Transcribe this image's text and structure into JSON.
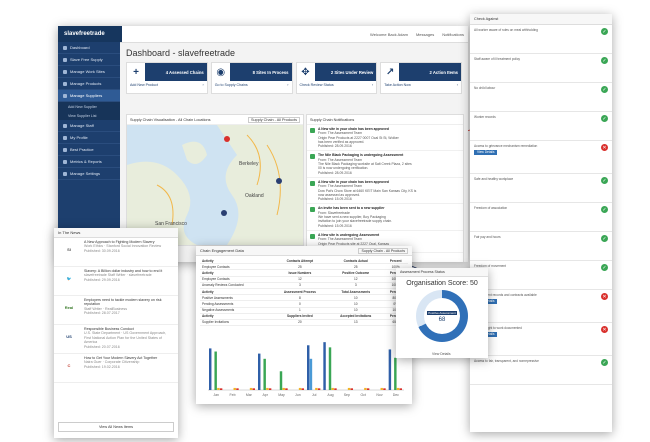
{
  "dashboard": {
    "brand": "slavefreetrade",
    "header_right": [
      "Welcome Back Adam",
      "Messages",
      "Notifications"
    ],
    "title": "Dashboard - slavefreetrade",
    "sidebar": [
      {
        "label": "Dashboard",
        "active": false
      },
      {
        "label": "Slave Free Supply",
        "active": false
      },
      {
        "label": "Manage Work Sites",
        "active": false
      },
      {
        "label": "Manage Products",
        "active": false
      },
      {
        "label": "Manage Suppliers",
        "active": true
      },
      {
        "label": "Add New Supplier",
        "sub": true
      },
      {
        "label": "View Supplier List",
        "sub": true
      },
      {
        "label": "Manage Staff",
        "active": false
      },
      {
        "label": "My Profile",
        "active": false
      },
      {
        "label": "Best Practice",
        "active": false
      },
      {
        "label": "Metrics & Reports",
        "active": false
      },
      {
        "label": "Manage Settings",
        "active": false
      }
    ],
    "cards": [
      {
        "icon": "+",
        "value": "4 Assessed Chains",
        "footer": "Add New Product"
      },
      {
        "icon": "◉",
        "value": "8 Sites In Process",
        "footer": "Go to Supply Chains"
      },
      {
        "icon": "✥",
        "value": "2 Sites Under Review",
        "footer": "Check Review Status"
      },
      {
        "icon": "↗",
        "value": "2 Action Items",
        "footer": "Take Action Now"
      }
    ],
    "map": {
      "title": "Supply Chain Visualisation - All Chain Locations",
      "select": "Supply Chain - All Products",
      "labels": [
        "San Francisco",
        "Oakland",
        "Berkeley"
      ]
    },
    "notifications": {
      "title": "Supply Chain Notifications",
      "items": [
        {
          "head": "A New site in your chain has been approved",
          "lines": [
            "From: The Assessment Team",
            "Origin Pear Products at 2227 0007 Ocal St St, Wolker",
            "has been verified as approved.",
            "Published: 28.09.2016"
          ]
        },
        {
          "head": "The Nile Black Packaging is undergoing Assessment",
          "lines": [
            "From: The Assessment Team",
            "The Nile Black Packaging worksite at Salt Creek Plaza, 2 sites",
            "00 is now undergoing verification.",
            "Published: 28.09.2016"
          ]
        },
        {
          "head": "A New site in your chain has been approved",
          "lines": [
            "From: The Assessment Team",
            "Dow Pat's Chow Store at 6460 KEIT Main San Kansas City, KS is",
            "now assessed as approved.",
            "Published: 15.09.2016"
          ]
        },
        {
          "head": "An invite has been sent to a new supplier",
          "lines": [
            "From: Slavefreetrade",
            "We have sent a new supplier, Boy Packaging",
            "invitation to join your slavefreetrade supply chain.",
            "Published: 15.09.2016"
          ]
        },
        {
          "head": "A New site is undergoing Assessment",
          "lines": [
            "From: The Assessment Team",
            "Origin Pear Products site at 2227 Ocal, Kansas",
            "is now undergoing verification."
          ]
        }
      ]
    }
  },
  "checklist": {
    "title": "Check Against",
    "rows": [
      {
        "text": "All worker aware of rules on meal withholding",
        "status": "ok"
      },
      {
        "text": "Staff aware of ill treatment policy",
        "status": "ok"
      },
      {
        "text": "No child labour",
        "status": "ok"
      },
      {
        "text": "Worker records",
        "status": "ok"
      },
      {
        "text": "Access to grievance mechanism remediation",
        "status": "bad",
        "action": "View Details"
      },
      {
        "text": "Safe and healthy workplace",
        "status": "ok"
      },
      {
        "text": "Freedom of association",
        "status": "ok"
      },
      {
        "text": "Fair pay and hours",
        "status": "ok"
      },
      {
        "text": "Freedom of movement",
        "status": "ok"
      },
      {
        "text": "Employment records and contracts available",
        "status": "bad",
        "action": "View Details"
      },
      {
        "text": "Proof of right to work documented",
        "status": "bad",
        "action": "View Details"
      },
      {
        "text": "Access to fair, transparent, and nonrepressive",
        "status": "ok"
      }
    ]
  },
  "news": {
    "title": "In The News",
    "items": [
      {
        "logo": "SI",
        "logo_color": "#555555",
        "title": "A New Approach to Fighting Modern Slavery",
        "source": "Work Ethics · Stanford Social Innovation Review",
        "date": "Published: 30.09.2016"
      },
      {
        "logo": "🐦",
        "logo_color": "#1d3f6e",
        "title": "Slavery: A Billion dollar industry and how to end it",
        "source": "slavefreetrade Staff Writer · slavefreetrade",
        "date": "Published: 29.09.2016"
      },
      {
        "logo": "Real",
        "logo_color": "#3a7b2b",
        "title": "Employers need to tackle modern slavery on risk reputation",
        "source": "Staff Writer · RealBusiness",
        "date": "Published: 28.07.2017"
      },
      {
        "logo": "US",
        "logo_color": "#1d3f6e",
        "title": "Responsible Business Conduct",
        "source": "U.S. State Department · US Government Approach, First National Action Plan for the United States of America",
        "date": "Published: 20.07.2016"
      },
      {
        "logo": "C",
        "logo_color": "#c0392b",
        "title": "How to Get Your Modern Slavery Act Together",
        "source": "Naira Guer · Corporate Citizenship",
        "date": "Published: 19.02.2016"
      }
    ],
    "view_all": "View All News Items"
  },
  "engagement": {
    "title": "Chain Engagement Data",
    "select": "Supply Chain - All Products",
    "rows": [
      {
        "cells": [
          "Activity",
          "Contacts Attempt",
          "Contacts Actual",
          "Percent"
        ],
        "header": true
      },
      {
        "cells": [
          "Employee Contacts",
          "25",
          "25",
          "100%"
        ]
      },
      {
        "cells": [
          "Activity",
          "Issue Numbers",
          "Positive Outcome",
          "Percent"
        ],
        "header": true
      },
      {
        "cells": [
          "Employee Contacts",
          "12",
          "12",
          "100%"
        ]
      },
      {
        "cells": [
          "Anomaly Reviews Conducted",
          "3",
          "3",
          "100%"
        ]
      },
      {
        "cells": [
          "Activity",
          "Assessment Process",
          "Total Assessments",
          "Percent"
        ],
        "header": true
      },
      {
        "cells": [
          "Positive Assessments",
          "8",
          "10",
          "80%"
        ]
      },
      {
        "cells": [
          "Pending Assessments",
          "0",
          "10",
          "0%"
        ]
      },
      {
        "cells": [
          "Negative Assessments",
          "1",
          "10",
          "10%"
        ]
      },
      {
        "cells": [
          "Activity",
          "Suppliers Invited",
          "Accepted Invitations",
          "Percent"
        ],
        "header": true
      },
      {
        "cells": [
          "Supplier Invitations",
          "20",
          "13",
          "65%"
        ]
      }
    ]
  },
  "chart_data": {
    "type": "bar",
    "categories": [
      "Jan",
      "Feb",
      "Mar",
      "Apr",
      "May",
      "Jun",
      "Jul",
      "Aug",
      "Sep",
      "Oct",
      "Nov",
      "Dec"
    ],
    "ylim": [
      0,
      250
    ],
    "series": [
      {
        "color": "#2f5fa8",
        "values": [
          200,
          0,
          0,
          175,
          0,
          0,
          215,
          230,
          0,
          0,
          0,
          195
        ]
      },
      {
        "color": "#4a9ad6",
        "values": [
          0,
          0,
          0,
          0,
          0,
          0,
          150,
          0,
          0,
          0,
          0,
          0
        ]
      },
      {
        "color": "#3aa655",
        "values": [
          185,
          0,
          0,
          150,
          90,
          0,
          0,
          205,
          0,
          0,
          0,
          155
        ]
      },
      {
        "color": "#f0b429",
        "values": [
          10,
          10,
          10,
          10,
          10,
          10,
          10,
          10,
          10,
          10,
          10,
          10
        ]
      },
      {
        "color": "#d9302c",
        "values": [
          8,
          8,
          8,
          8,
          8,
          8,
          8,
          8,
          8,
          8,
          8,
          8
        ]
      }
    ]
  },
  "score": {
    "header": "Assessment Process Status",
    "title": "Organisation Score: 50",
    "ring_label": "Positive Assessment",
    "ring_value": "68",
    "positive_fraction": 0.68,
    "footer": "View Details"
  }
}
